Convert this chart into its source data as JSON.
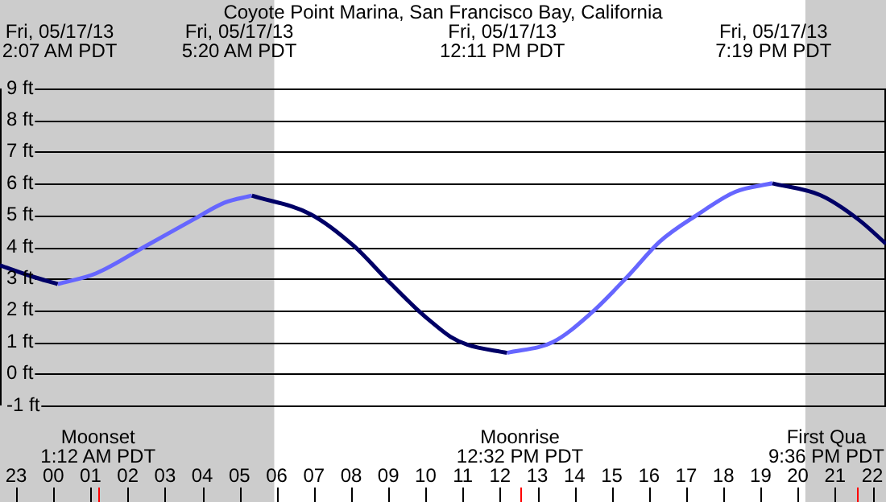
{
  "chart_data": {
    "type": "line",
    "title": "Coyote Point Marina, San Francisco Bay, California",
    "annotations": [
      "Fri, 05/17/13\n2:07 AM PDT",
      "Fri, 05/17/13\n5:20 AM PDT",
      "Fri, 05/17/13\n12:11 PM PDT",
      "Fri, 05/17/13\n7:19 PM PDT"
    ],
    "ref_lines": [
      {
        "axis": "x",
        "value": "--05-17T01:12",
        "label": "Moonset\n1:12 AM PDT",
        "color": "#ff0000"
      },
      {
        "axis": "x",
        "value": "--05-17T12:32",
        "label": "Moonrise\n12:32 PM PDT",
        "color": "#ff0000"
      },
      {
        "axis": "x",
        "value": "--05-17T21:36",
        "label": "First Qua\n9:36 PM PDT",
        "color": "#ff0000"
      }
    ],
    "series": [
      {
        "color": "#000066",
        "x": [
          "--05-16T22:34",
          "--05-16T23:24",
          "--05-17T00:07",
          "--05-17T02:42",
          "--05-17T05:20",
          "--05-17T06:55",
          "--05-17T08:05",
          "--05-17T08:56",
          "--05-17T09:49",
          "--05-17T10:14",
          "--05-17T10:40",
          "--05-17T11:07",
          "--05-17T12:11",
          "--05-17T15:30",
          "--05-17T19:19",
          "--05-17T20:38",
          "--05-17T21:38",
          "--05-17T22:22"
        ],
        "values": [
          3.42,
          3.08,
          2.83,
          null,
          5.62,
          5.03,
          4.02,
          3.0,
          1.98,
          1.56,
          1.17,
          0.92,
          0.66,
          null,
          6.01,
          5.62,
          4.86,
          4.1
        ]
      },
      {
        "color": "#6666ff",
        "x": [
          "--05-17T00:07",
          "--05-17T01:09",
          "--05-17T02:28",
          "--05-17T03:45",
          "--05-17T04:36",
          "--05-17T05:20",
          "--05-17T08:30",
          "--05-17T12:11",
          "--05-17T13:25",
          "--05-17T14:26",
          "--05-17T15:26",
          "--05-17T16:18",
          "--05-17T17:19",
          "--05-17T18:19",
          "--05-17T19:19"
        ],
        "values": [
          2.83,
          3.17,
          4.02,
          4.86,
          5.4,
          5.62,
          null,
          0.66,
          1.0,
          1.9,
          3.08,
          4.18,
          5.03,
          5.74,
          6.01
        ]
      }
    ],
    "marker": "none",
    "grid": "y",
    "bands": [
      {
        "axis": "x",
        "from": "--05-16T22:34",
        "to": "--05-17T05:56",
        "color": "#cccccc"
      },
      {
        "axis": "x",
        "from": "--05-17T20:12",
        "to": "--05-17T22:22",
        "color": "#cccccc"
      }
    ],
    "xlim": [
      "--05-16T22:34",
      "--05-17T22:22"
    ],
    "xticks": [
      {
        "value": "--05-16T23:00",
        "label": "23"
      },
      {
        "value": "--05-17T00:00",
        "label": "00"
      },
      {
        "value": "--05-17T01:00",
        "label": "01"
      },
      {
        "value": "--05-17T02:00",
        "label": "02"
      },
      {
        "value": "--05-17T03:00",
        "label": "03"
      },
      {
        "value": "--05-17T04:00",
        "label": "04"
      },
      {
        "value": "--05-17T05:00",
        "label": "05"
      },
      {
        "value": "--05-17T06:00",
        "label": "06"
      },
      {
        "value": "--05-17T07:00",
        "label": "07"
      },
      {
        "value": "--05-17T08:00",
        "label": "08"
      },
      {
        "value": "--05-17T09:00",
        "label": "09"
      },
      {
        "value": "--05-17T10:00",
        "label": "10"
      },
      {
        "value": "--05-17T11:00",
        "label": "11"
      },
      {
        "value": "--05-17T12:00",
        "label": "12"
      },
      {
        "value": "--05-17T13:00",
        "label": "13"
      },
      {
        "value": "--05-17T14:00",
        "label": "14"
      },
      {
        "value": "--05-17T15:00",
        "label": "15"
      },
      {
        "value": "--05-17T16:00",
        "label": "16"
      },
      {
        "value": "--05-17T17:00",
        "label": "17"
      },
      {
        "value": "--05-17T18:00",
        "label": "18"
      },
      {
        "value": "--05-17T19:00",
        "label": "19"
      },
      {
        "value": "--05-17T20:00",
        "label": "20"
      },
      {
        "value": "--05-17T21:00",
        "label": "21"
      },
      {
        "value": "--05-17T22:00",
        "label": "22"
      }
    ],
    "ylim": [
      -1,
      9
    ],
    "yticks": [
      {
        "value": -1,
        "label": "-1 ft"
      },
      {
        "value": 0,
        "label": "0 ft"
      },
      {
        "value": 1,
        "label": "1 ft"
      },
      {
        "value": 2,
        "label": "2 ft"
      },
      {
        "value": 3,
        "label": "3 ft"
      },
      {
        "value": 4,
        "label": "4 ft"
      },
      {
        "value": 5,
        "label": "5 ft"
      },
      {
        "value": 6,
        "label": "6 ft"
      },
      {
        "value": 7,
        "label": "7 ft"
      },
      {
        "value": 8,
        "label": "8 ft"
      },
      {
        "value": 9,
        "label": "9 ft"
      }
    ]
  }
}
